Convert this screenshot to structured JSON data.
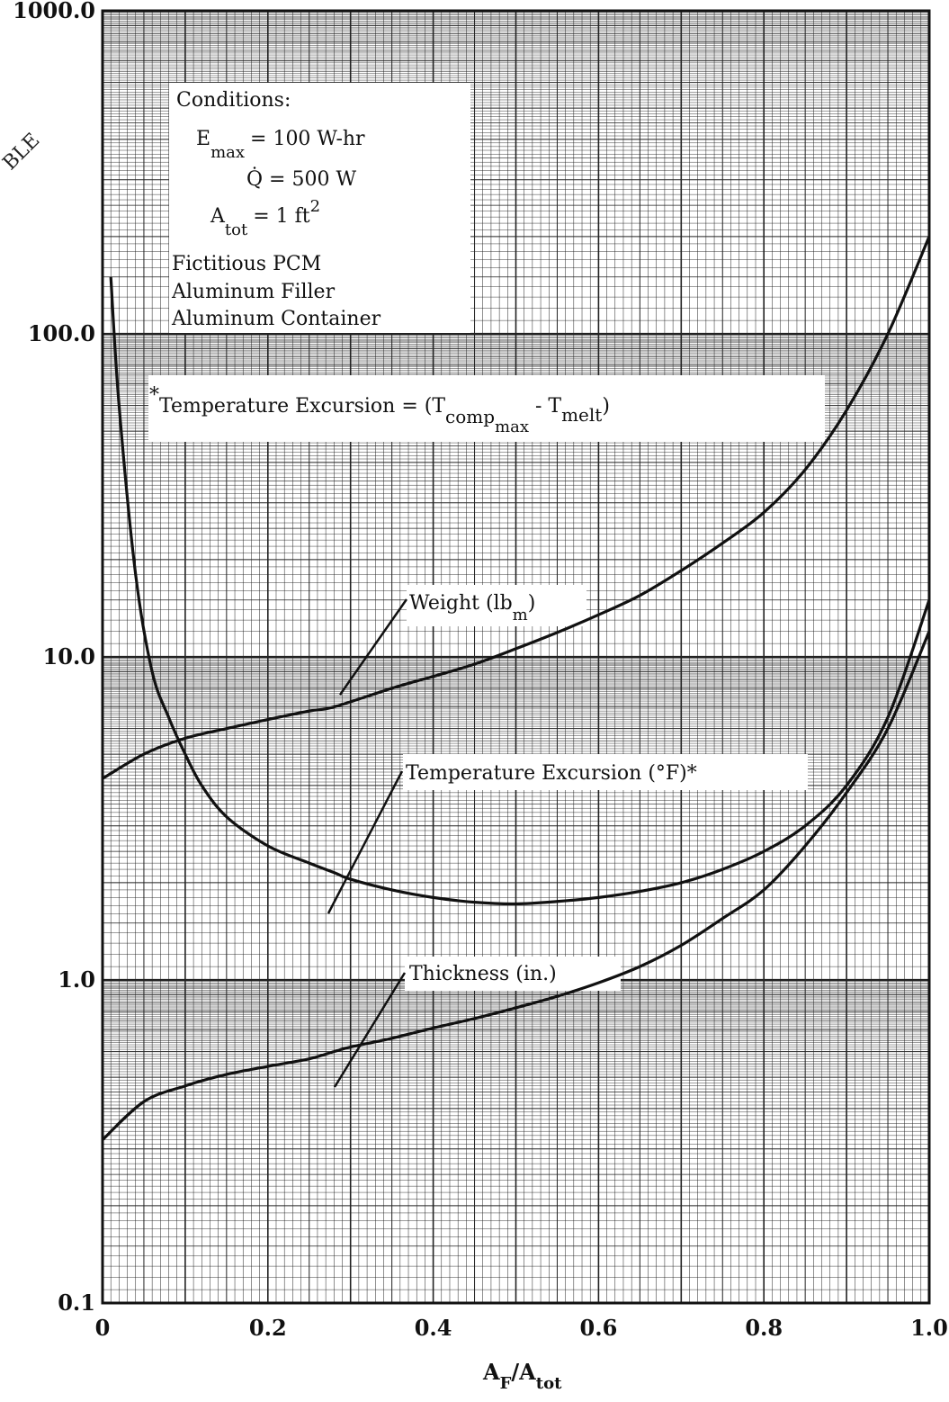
{
  "chart_data": {
    "type": "line",
    "x_scale": "linear",
    "y_scale": "log",
    "xlim": [
      0,
      1.0
    ],
    "ylim": [
      0.1,
      1000.0
    ],
    "xlabel_main": "A",
    "xlabel_sub1": "F",
    "xlabel_slash": "/A",
    "xlabel_sub2": "tot",
    "x_ticks": [
      "0",
      "0.2",
      "0.4",
      "0.6",
      "0.8",
      "1.0"
    ],
    "y_ticks": [
      "0.1",
      "1.0",
      "10.0",
      "100.0",
      "1000.0"
    ],
    "grid": "on",
    "series": [
      {
        "name": "Weight (lbm)",
        "x": [
          0,
          0.05,
          0.1,
          0.15,
          0.2,
          0.25,
          0.28,
          0.35,
          0.4,
          0.45,
          0.5,
          0.55,
          0.6,
          0.65,
          0.7,
          0.75,
          0.8,
          0.85,
          0.9,
          0.95,
          1.0
        ],
        "y": [
          4.2,
          5.0,
          5.6,
          6.0,
          6.4,
          6.8,
          7.0,
          8.0,
          8.7,
          9.5,
          10.6,
          11.9,
          13.5,
          15.5,
          18.5,
          22.5,
          28.0,
          38.0,
          58.0,
          100.0,
          200.0
        ]
      },
      {
        "name": "Temperature Excursion (°F)*",
        "x": [
          0.01,
          0.02,
          0.04,
          0.06,
          0.08,
          0.1,
          0.12,
          0.15,
          0.2,
          0.25,
          0.28,
          0.3,
          0.35,
          0.4,
          0.45,
          0.5,
          0.55,
          0.6,
          0.65,
          0.7,
          0.75,
          0.8,
          0.85,
          0.9,
          0.95,
          1.0
        ],
        "y": [
          150.0,
          60.0,
          18.0,
          9.0,
          6.5,
          5.0,
          4.0,
          3.2,
          2.6,
          2.3,
          2.15,
          2.05,
          1.9,
          1.8,
          1.74,
          1.72,
          1.75,
          1.8,
          1.88,
          2.0,
          2.2,
          2.5,
          3.0,
          4.0,
          6.5,
          15.0
        ]
      },
      {
        "name": "Thickness (in.)",
        "x": [
          0,
          0.05,
          0.1,
          0.15,
          0.2,
          0.25,
          0.28,
          0.3,
          0.35,
          0.4,
          0.45,
          0.5,
          0.55,
          0.6,
          0.65,
          0.7,
          0.75,
          0.8,
          0.85,
          0.9,
          0.95,
          1.0
        ],
        "y": [
          0.32,
          0.42,
          0.47,
          0.51,
          0.54,
          0.57,
          0.6,
          0.62,
          0.66,
          0.71,
          0.76,
          0.82,
          0.89,
          0.98,
          1.1,
          1.28,
          1.55,
          1.9,
          2.6,
          3.8,
          6.0,
          12.0
        ]
      }
    ],
    "labels": {
      "weight_main": "Weight (lb",
      "weight_sub": "m",
      "weight_close": ")",
      "temp": "Temperature Excursion (°F)*",
      "thickness": "Thickness (in.)"
    },
    "conditions": {
      "title": "Conditions:",
      "emax_main": "E",
      "emax_sub": "max",
      "emax_value": "= 100 W-hr",
      "qdot": "Q̇ = 500 W",
      "atot_main": "A",
      "atot_sub": "tot",
      "atot_value": "= 1 ft",
      "atot_sup": "2",
      "line1": "Fictitious PCM",
      "line2": "Aluminum Filler",
      "line3": "Aluminum Container"
    },
    "footnote": {
      "star": "*",
      "main": "Temperature Excursion = (T",
      "sub1": "comp",
      "subsub": "max",
      "mid": " - T",
      "sub2": "melt",
      "close": ")"
    },
    "margin_fragment": "BLE"
  }
}
